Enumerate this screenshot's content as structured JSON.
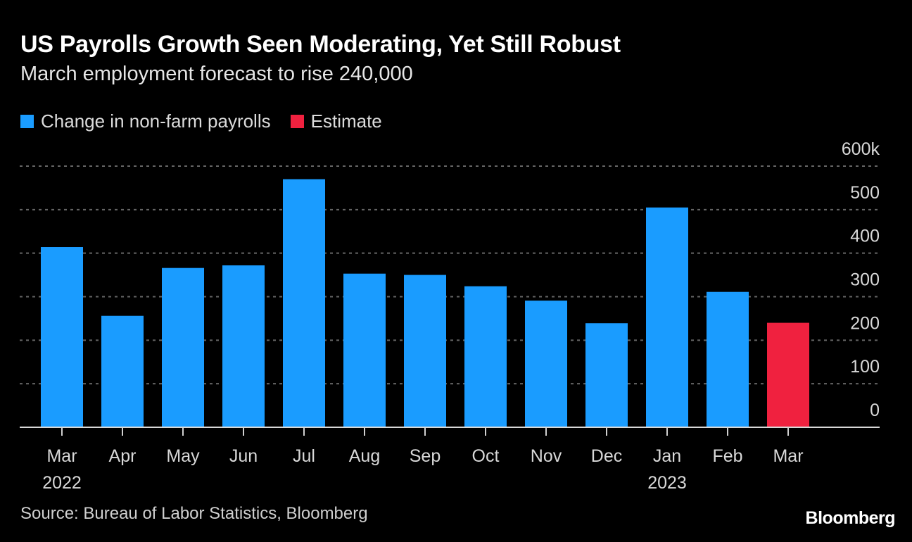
{
  "chart_data": {
    "type": "bar",
    "title": "US Payrolls Growth Seen Moderating, Yet Still Robust",
    "subtitle": "March employment forecast to rise 240,000",
    "categories": [
      "Mar 2022",
      "Apr",
      "May",
      "Jun",
      "Jul",
      "Aug",
      "Sep",
      "Oct",
      "Nov",
      "Dec",
      "Jan 2023",
      "Feb",
      "Mar"
    ],
    "x_tick_labels": [
      [
        "Mar",
        "2022"
      ],
      [
        "Apr"
      ],
      [
        "May"
      ],
      [
        "Jun"
      ],
      [
        "Jul"
      ],
      [
        "Aug"
      ],
      [
        "Sep"
      ],
      [
        "Oct"
      ],
      [
        "Nov"
      ],
      [
        "Dec"
      ],
      [
        "Jan",
        "2023"
      ],
      [
        "Feb"
      ],
      [
        "Mar"
      ]
    ],
    "values": [
      414,
      256,
      366,
      372,
      570,
      353,
      350,
      324,
      291,
      239,
      505,
      311,
      240
    ],
    "series_kind": [
      "actual",
      "actual",
      "actual",
      "actual",
      "actual",
      "actual",
      "actual",
      "actual",
      "actual",
      "actual",
      "actual",
      "actual",
      "estimate"
    ],
    "legend": [
      {
        "label": "Change in non-farm payrolls",
        "color": "#1a9cff"
      },
      {
        "label": "Estimate",
        "color": "#f0213f"
      }
    ],
    "legend_position": "top-left",
    "ylim": [
      0,
      600
    ],
    "y_ticks": [
      0,
      100,
      200,
      300,
      400,
      500,
      600
    ],
    "y_tick_labels": [
      "0",
      "100",
      "200",
      "300",
      "400",
      "500",
      "600k"
    ],
    "y_axis_side": "right",
    "grid": true,
    "xlabel": "",
    "ylabel": ""
  },
  "footer": {
    "source": "Source: Bureau of Labor Statistics, Bloomberg",
    "logo": "Bloomberg"
  }
}
